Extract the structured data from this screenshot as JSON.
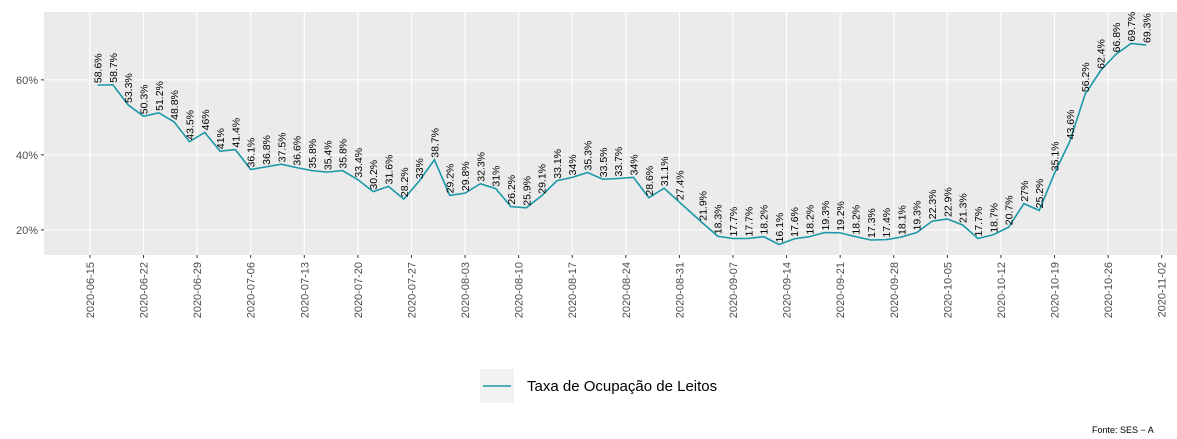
{
  "chart_data": {
    "type": "line",
    "x": [
      "2020-06-16",
      "2020-06-18",
      "2020-06-20",
      "2020-06-22",
      "2020-06-24",
      "2020-06-26",
      "2020-06-28",
      "2020-06-30",
      "2020-07-02",
      "2020-07-04",
      "2020-07-06",
      "2020-07-08",
      "2020-07-10",
      "2020-07-12",
      "2020-07-14",
      "2020-07-16",
      "2020-07-18",
      "2020-07-20",
      "2020-07-22",
      "2020-07-24",
      "2020-07-26",
      "2020-07-28",
      "2020-07-30",
      "2020-08-01",
      "2020-08-03",
      "2020-08-05",
      "2020-08-07",
      "2020-08-09",
      "2020-08-11",
      "2020-08-13",
      "2020-08-15",
      "2020-08-17",
      "2020-08-19",
      "2020-08-21",
      "2020-08-23",
      "2020-08-25",
      "2020-08-27",
      "2020-08-29",
      "2020-08-31",
      "2020-09-03",
      "2020-09-05",
      "2020-09-07",
      "2020-09-09",
      "2020-09-11",
      "2020-09-13",
      "2020-09-15",
      "2020-09-17",
      "2020-09-19",
      "2020-09-21",
      "2020-09-23",
      "2020-09-25",
      "2020-09-27",
      "2020-09-29",
      "2020-10-01",
      "2020-10-03",
      "2020-10-05",
      "2020-10-07",
      "2020-10-09",
      "2020-10-11",
      "2020-10-13",
      "2020-10-15",
      "2020-10-17",
      "2020-10-19",
      "2020-10-21",
      "2020-10-23",
      "2020-10-25",
      "2020-10-27",
      "2020-10-29",
      "2020-10-31"
    ],
    "series": [
      {
        "name": "Taxa de Ocupação de Leitos",
        "color": "#1b98a8",
        "values": [
          58.6,
          58.7,
          53.3,
          50.3,
          51.2,
          48.8,
          43.5,
          46,
          41,
          41.4,
          36.1,
          36.8,
          37.5,
          36.6,
          35.8,
          35.4,
          35.8,
          33.4,
          30.2,
          31.6,
          28.2,
          33,
          38.7,
          29.2,
          29.8,
          32.3,
          31,
          26.2,
          25.9,
          29.1,
          33.1,
          34,
          35.3,
          33.5,
          33.7,
          34,
          28.6,
          31.1,
          27.4,
          21.9,
          18.3,
          17.7,
          17.7,
          18.2,
          16.1,
          17.6,
          18.2,
          19.3,
          19.2,
          18.2,
          17.3,
          17.4,
          18.1,
          19.3,
          22.3,
          22.9,
          21.3,
          17.7,
          18.7,
          20.7,
          27,
          25.2,
          35.1,
          43.6,
          56.2,
          62.4,
          66.8,
          69.7,
          69.3
        ],
        "value_labels": [
          "58.6%",
          "58.7%",
          "53.3%",
          "50.3%",
          "51.2%",
          "48.8%",
          "43.5%",
          "46%",
          "41%",
          "41.4%",
          "36.1%",
          "36.8%",
          "37.5%",
          "36.6%",
          "35.8%",
          "35.4%",
          "35.8%",
          "33.4%",
          "30.2%",
          "31.6%",
          "28.2%",
          "33%",
          "38.7%",
          "29.2%",
          "29.8%",
          "32.3%",
          "31%",
          "26.2%",
          "25.9%",
          "29.1%",
          "33.1%",
          "34%",
          "35.3%",
          "33.5%",
          "33.7%",
          "34%",
          "28.6%",
          "31.1%",
          "27.4%",
          "21.9%",
          "18.3%",
          "17.7%",
          "17.7%",
          "18.2%",
          "16.1%",
          "17.6%",
          "18.2%",
          "19.3%",
          "19.2%",
          "18.2%",
          "17.3%",
          "17.4%",
          "18.1%",
          "19.3%",
          "22.3%",
          "22.9%",
          "21.3%",
          "17.7%",
          "18.7%",
          "20.7%",
          "27%",
          "25.2%",
          "35.1%",
          "43.6%",
          "56.2%",
          "62.4%",
          "66.8%",
          "69.7%",
          "69.3%"
        ]
      }
    ],
    "xlim": [
      "2020-06-09",
      "2020-11-04"
    ],
    "xticks": [
      "2020-06-15",
      "2020-06-22",
      "2020-06-29",
      "2020-07-06",
      "2020-07-13",
      "2020-07-20",
      "2020-07-27",
      "2020-08-03",
      "2020-08-10",
      "2020-08-17",
      "2020-08-24",
      "2020-08-31",
      "2020-09-07",
      "2020-09-14",
      "2020-09-21",
      "2020-09-28",
      "2020-10-05",
      "2020-10-12",
      "2020-10-19",
      "2020-10-26",
      "2020-11-02"
    ],
    "ylim": [
      13.3,
      78.1
    ],
    "yticks": [
      {
        "value": 20,
        "label": "20%"
      },
      {
        "value": 40,
        "label": "40%"
      },
      {
        "value": 60,
        "label": "60%"
      }
    ],
    "grid": true,
    "legend": "bottom",
    "caption": "Fonte: SES − A"
  }
}
